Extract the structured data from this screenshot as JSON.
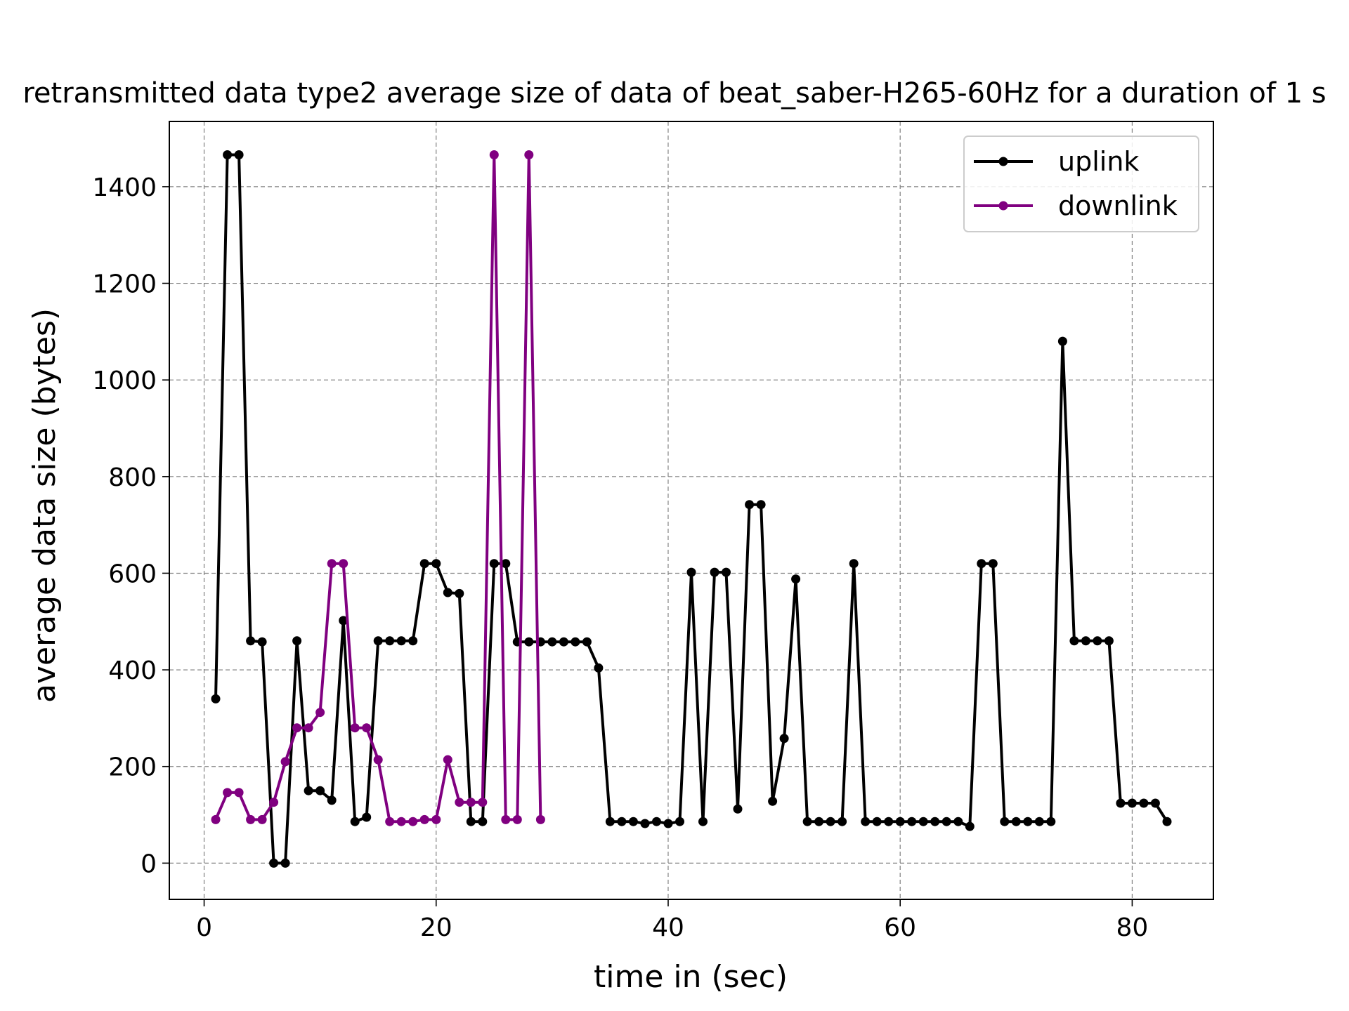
{
  "chart_data": {
    "type": "line",
    "title": "retransmitted data type2 average size of data of beat_saber-H265-60Hz for a duration of 1 s",
    "xlabel": "time in (sec)",
    "ylabel": "average data size (bytes)",
    "xlim": [
      -3,
      87
    ],
    "ylim": [
      -75,
      1535
    ],
    "xticks": [
      0,
      20,
      40,
      60,
      80
    ],
    "yticks": [
      0,
      200,
      400,
      600,
      800,
      1000,
      1200,
      1400
    ],
    "grid": true,
    "legend_position": "top-right",
    "series": [
      {
        "name": "uplink",
        "color": "#000000",
        "x": [
          1,
          2,
          3,
          4,
          5,
          6,
          7,
          8,
          9,
          10,
          11,
          12,
          13,
          14,
          15,
          16,
          17,
          18,
          19,
          20,
          21,
          22,
          23,
          24,
          25,
          26,
          27,
          28,
          29,
          30,
          31,
          32,
          33,
          34,
          35,
          36,
          37,
          38,
          39,
          40,
          41,
          42,
          43,
          44,
          45,
          46,
          47,
          48,
          49,
          50,
          51,
          52,
          53,
          54,
          55,
          56,
          57,
          58,
          59,
          60,
          61,
          62,
          63,
          64,
          65,
          66,
          67,
          68,
          69,
          70,
          71,
          72,
          73,
          74,
          75,
          76,
          77,
          78,
          79,
          80,
          81,
          82,
          83
        ],
        "y": [
          340,
          1466,
          1466,
          460,
          458,
          0,
          0,
          460,
          150,
          150,
          130,
          502,
          86,
          95,
          460,
          460,
          460,
          460,
          620,
          620,
          560,
          558,
          86,
          86,
          620,
          620,
          458,
          458,
          458,
          458,
          458,
          458,
          458,
          404,
          86,
          86,
          86,
          82,
          86,
          82,
          86,
          602,
          86,
          602,
          602,
          112,
          742,
          742,
          128,
          258,
          588,
          86,
          86,
          86,
          86,
          620,
          86,
          86,
          86,
          86,
          86,
          86,
          86,
          86,
          86,
          76,
          620,
          620,
          86,
          86,
          86,
          86,
          86,
          1080,
          460,
          460,
          460,
          460,
          124,
          124,
          124,
          124,
          86
        ]
      },
      {
        "name": "downlink",
        "color": "#800080",
        "x": [
          1,
          2,
          3,
          4,
          5,
          6,
          7,
          8,
          9,
          10,
          11,
          12,
          13,
          14,
          15,
          16,
          17,
          18,
          19,
          20,
          21,
          22,
          23,
          24,
          25,
          26,
          27,
          28,
          29
        ],
        "y": [
          90,
          146,
          146,
          90,
          90,
          126,
          210,
          280,
          280,
          312,
          620,
          620,
          280,
          280,
          214,
          86,
          86,
          86,
          90,
          90,
          214,
          126,
          126,
          126,
          1466,
          90,
          90,
          1466,
          90
        ]
      }
    ]
  }
}
